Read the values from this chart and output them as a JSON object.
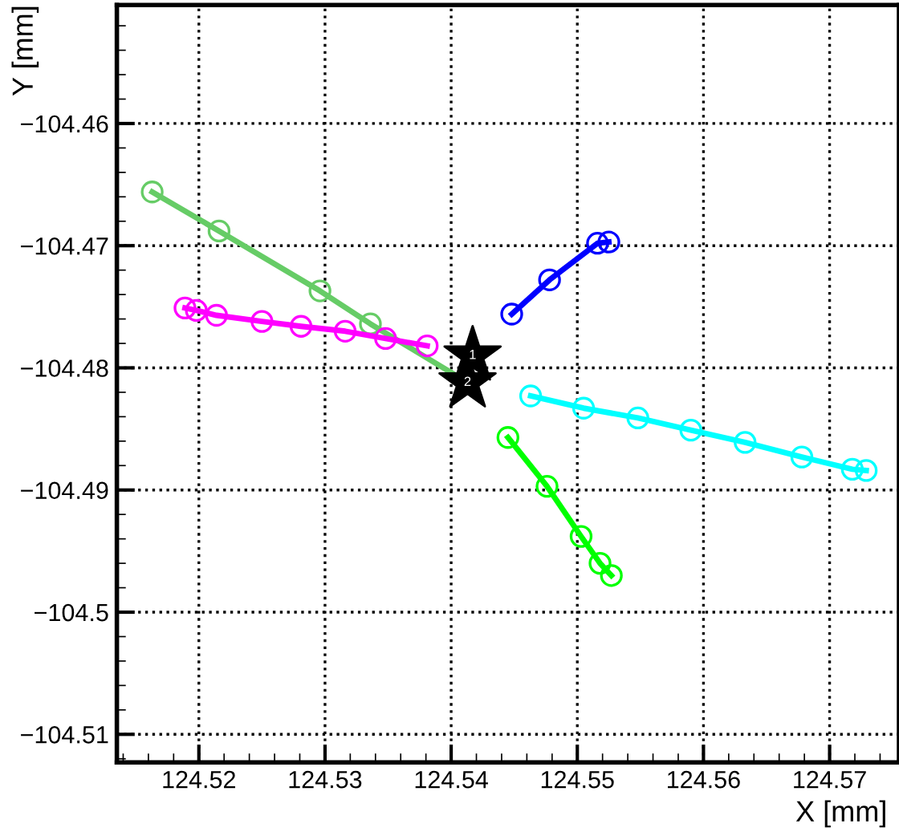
{
  "chart_data": {
    "type": "line",
    "xlabel": "X [mm]",
    "ylabel": "Y [mm]",
    "xlim": [
      124.5135,
      124.5755
    ],
    "ylim": [
      -104.5123,
      -104.4503
    ],
    "xticks": [
      124.52,
      124.53,
      124.54,
      124.55,
      124.56,
      124.57
    ],
    "yticks": [
      {
        "value": -104.51,
        "label": "−104.51"
      },
      {
        "value": -104.5,
        "label": "−104.5"
      },
      {
        "value": -104.49,
        "label": "−104.49"
      },
      {
        "value": -104.48,
        "label": "−104.48"
      },
      {
        "value": -104.47,
        "label": "−104.47"
      },
      {
        "value": -104.46,
        "label": "−104.46"
      }
    ],
    "grid": true,
    "marker": "circle",
    "line_style": "solid",
    "series": [
      {
        "color": "#66cc66",
        "x": [
          124.5163,
          124.5216,
          124.5296,
          124.5336,
          124.5413
        ],
        "values": [
          -104.4656,
          -104.4688,
          -104.4737,
          -104.4764,
          -104.4812
        ]
      },
      {
        "color": "#ff00ff",
        "x": [
          124.5189,
          124.5198,
          124.5214,
          124.525,
          124.5281,
          124.5316,
          124.5348,
          124.5381
        ],
        "values": [
          -104.4751,
          -104.4753,
          -104.4757,
          -104.4762,
          -104.4766,
          -104.477,
          -104.4776,
          -104.4782
        ]
      },
      {
        "color": "#0000ff",
        "x": [
          124.5448,
          124.5478,
          124.5516,
          124.5525
        ],
        "values": [
          -104.4756,
          -104.4728,
          -104.4698,
          -104.4697
        ]
      },
      {
        "color": "#00ffff",
        "x": [
          124.5463,
          124.5505,
          124.5548,
          124.559,
          124.5633,
          124.5678,
          124.5718,
          124.5729
        ],
        "values": [
          -104.4823,
          -104.4833,
          -104.4841,
          -104.4851,
          -104.4861,
          -104.4873,
          -104.4883,
          -104.4884
        ]
      },
      {
        "color": "#00ff00",
        "x": [
          124.5445,
          124.5476,
          124.5503,
          124.5518,
          124.5527
        ],
        "values": [
          -104.4857,
          -104.4897,
          -104.4938,
          -104.496,
          -104.497
        ]
      },
      {
        "type": "scatter",
        "marker": "star",
        "color": "#000000",
        "x": [
          124.5417,
          124.5413
        ],
        "values": [
          -104.479,
          -104.4812
        ]
      }
    ],
    "annotations": [
      {
        "text": "1",
        "x": 124.5417,
        "y": -104.479
      },
      {
        "text": "2",
        "x": 124.5413,
        "y": -104.4812
      }
    ]
  }
}
